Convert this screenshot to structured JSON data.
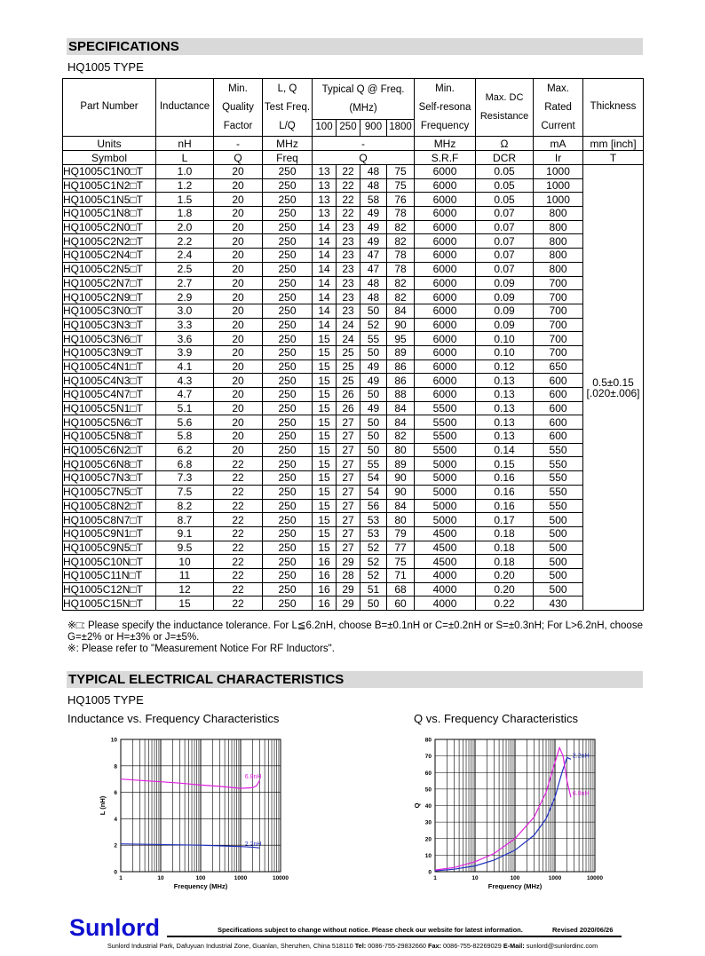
{
  "header": {
    "title": "SPECIFICATIONS",
    "subtitle": "HQ1005 TYPE"
  },
  "table": {
    "head": {
      "part_number": "Part Number",
      "inductance": "Inductance",
      "min_q": [
        "Min.",
        "Quality",
        "Factor"
      ],
      "test_freq": [
        "L, Q",
        "Test Freq.",
        "L/Q"
      ],
      "typical_q": [
        "Typical Q @ Freq.",
        "(MHz)"
      ],
      "q_freqs": [
        "100",
        "250",
        "900",
        "1800"
      ],
      "srf": [
        "Min.",
        "Self-resona",
        "Frequency"
      ],
      "dcr": [
        "Max. DC",
        "Resistance"
      ],
      "current": [
        "Max.",
        "Rated",
        "Current"
      ],
      "thickness": "Thickness"
    },
    "units": [
      "Units",
      "nH",
      "-",
      "MHz",
      "-",
      "MHz",
      "Ω",
      "mA",
      "mm [inch]"
    ],
    "symbols": [
      "Symbol",
      "L",
      "Q",
      "Freq",
      "Q",
      "S.R.F",
      "DCR",
      "Ir",
      "T"
    ],
    "rows": [
      [
        "HQ1005C1N0□T",
        "1.0",
        "20",
        "250",
        "13",
        "22",
        "48",
        "75",
        "6000",
        "0.05",
        "1000"
      ],
      [
        "HQ1005C1N2□T",
        "1.2",
        "20",
        "250",
        "13",
        "22",
        "48",
        "75",
        "6000",
        "0.05",
        "1000"
      ],
      [
        "HQ1005C1N5□T",
        "1.5",
        "20",
        "250",
        "13",
        "22",
        "58",
        "76",
        "6000",
        "0.05",
        "1000"
      ],
      [
        "HQ1005C1N8□T",
        "1.8",
        "20",
        "250",
        "13",
        "22",
        "49",
        "78",
        "6000",
        "0.07",
        "800"
      ],
      [
        "HQ1005C2N0□T",
        "2.0",
        "20",
        "250",
        "14",
        "23",
        "49",
        "82",
        "6000",
        "0.07",
        "800"
      ],
      [
        "HQ1005C2N2□T",
        "2.2",
        "20",
        "250",
        "14",
        "23",
        "49",
        "82",
        "6000",
        "0.07",
        "800"
      ],
      [
        "HQ1005C2N4□T",
        "2.4",
        "20",
        "250",
        "14",
        "23",
        "47",
        "78",
        "6000",
        "0.07",
        "800"
      ],
      [
        "HQ1005C2N5□T",
        "2.5",
        "20",
        "250",
        "14",
        "23",
        "47",
        "78",
        "6000",
        "0.07",
        "800"
      ],
      [
        "HQ1005C2N7□T",
        "2.7",
        "20",
        "250",
        "14",
        "23",
        "48",
        "82",
        "6000",
        "0.09",
        "700"
      ],
      [
        "HQ1005C2N9□T",
        "2.9",
        "20",
        "250",
        "14",
        "23",
        "48",
        "82",
        "6000",
        "0.09",
        "700"
      ],
      [
        "HQ1005C3N0□T",
        "3.0",
        "20",
        "250",
        "14",
        "23",
        "50",
        "84",
        "6000",
        "0.09",
        "700"
      ],
      [
        "HQ1005C3N3□T",
        "3.3",
        "20",
        "250",
        "14",
        "24",
        "52",
        "90",
        "6000",
        "0.09",
        "700"
      ],
      [
        "HQ1005C3N6□T",
        "3.6",
        "20",
        "250",
        "15",
        "24",
        "55",
        "95",
        "6000",
        "0.10",
        "700"
      ],
      [
        "HQ1005C3N9□T",
        "3.9",
        "20",
        "250",
        "15",
        "25",
        "50",
        "89",
        "6000",
        "0.10",
        "700"
      ],
      [
        "HQ1005C4N1□T",
        "4.1",
        "20",
        "250",
        "15",
        "25",
        "49",
        "86",
        "6000",
        "0.12",
        "650"
      ],
      [
        "HQ1005C4N3□T",
        "4.3",
        "20",
        "250",
        "15",
        "25",
        "49",
        "86",
        "6000",
        "0.13",
        "600"
      ],
      [
        "HQ1005C4N7□T",
        "4.7",
        "20",
        "250",
        "15",
        "26",
        "50",
        "88",
        "6000",
        "0.13",
        "600"
      ],
      [
        "HQ1005C5N1□T",
        "5.1",
        "20",
        "250",
        "15",
        "26",
        "49",
        "84",
        "5500",
        "0.13",
        "600"
      ],
      [
        "HQ1005C5N6□T",
        "5.6",
        "20",
        "250",
        "15",
        "27",
        "50",
        "84",
        "5500",
        "0.13",
        "600"
      ],
      [
        "HQ1005C5N8□T",
        "5.8",
        "20",
        "250",
        "15",
        "27",
        "50",
        "82",
        "5500",
        "0.13",
        "600"
      ],
      [
        "HQ1005C6N2□T",
        "6.2",
        "20",
        "250",
        "15",
        "27",
        "50",
        "80",
        "5500",
        "0.14",
        "550"
      ],
      [
        "HQ1005C6N8□T",
        "6.8",
        "22",
        "250",
        "15",
        "27",
        "55",
        "89",
        "5000",
        "0.15",
        "550"
      ],
      [
        "HQ1005C7N3□T",
        "7.3",
        "22",
        "250",
        "15",
        "27",
        "54",
        "90",
        "5000",
        "0.16",
        "550"
      ],
      [
        "HQ1005C7N5□T",
        "7.5",
        "22",
        "250",
        "15",
        "27",
        "54",
        "90",
        "5000",
        "0.16",
        "550"
      ],
      [
        "HQ1005C8N2□T",
        "8.2",
        "22",
        "250",
        "15",
        "27",
        "56",
        "84",
        "5000",
        "0.16",
        "550"
      ],
      [
        "HQ1005C8N7□T",
        "8.7",
        "22",
        "250",
        "15",
        "27",
        "53",
        "80",
        "5000",
        "0.17",
        "500"
      ],
      [
        "HQ1005C9N1□T",
        "9.1",
        "22",
        "250",
        "15",
        "27",
        "53",
        "79",
        "4500",
        "0.18",
        "500"
      ],
      [
        "HQ1005C9N5□T",
        "9.5",
        "22",
        "250",
        "15",
        "27",
        "52",
        "77",
        "4500",
        "0.18",
        "500"
      ],
      [
        "HQ1005C10N□T",
        "10",
        "22",
        "250",
        "16",
        "29",
        "52",
        "75",
        "4500",
        "0.18",
        "500"
      ],
      [
        "HQ1005C11N□T",
        "11",
        "22",
        "250",
        "16",
        "28",
        "52",
        "71",
        "4000",
        "0.20",
        "500"
      ],
      [
        "HQ1005C12N□T",
        "12",
        "22",
        "250",
        "16",
        "29",
        "51",
        "68",
        "4000",
        "0.20",
        "500"
      ],
      [
        "HQ1005C15N□T",
        "15",
        "22",
        "250",
        "16",
        "29",
        "50",
        "60",
        "4000",
        "0.22",
        "430"
      ]
    ],
    "thickness": [
      "0.5±0.15",
      "[.020±.006]"
    ]
  },
  "notes": [
    "※□: Please specify the inductance tolerance. For L≦6.2nH, choose B=±0.1nH or C=±0.2nH or S=±0.3nH; For L>6.2nH, choose G=±2% or H=±3% or J=±5%.",
    "※: Please refer to \"Measurement Notice For RF Inductors\"."
  ],
  "section2": {
    "title": "TYPICAL ELECTRICAL CHARACTERISTICS",
    "subtitle": "HQ1005 TYPE"
  },
  "charts": [
    {
      "type": "line",
      "title": "Inductance vs. Frequency Characteristics",
      "x_label": "Frequency (MHz)",
      "y_label": "L (nH)",
      "log_x": true,
      "grid": true,
      "xlim": [
        1,
        10000
      ],
      "xticks": [
        1,
        10,
        100,
        1000,
        10000
      ],
      "ylim": [
        0,
        10
      ],
      "yticks": [
        0,
        2,
        4,
        6,
        8,
        10
      ],
      "series": [
        {
          "name": "6.8nH",
          "color": "#e020e0",
          "x": [
            1,
            3,
            10,
            30,
            100,
            300,
            1000,
            2000,
            2500,
            3000
          ],
          "values": [
            7.0,
            6.9,
            6.8,
            6.7,
            6.55,
            6.45,
            6.3,
            6.35,
            6.5,
            6.9
          ]
        },
        {
          "name": "2.2nH",
          "color": "#2030c0",
          "x": [
            1,
            10,
            100,
            1000,
            2000,
            3000
          ],
          "values": [
            2.1,
            2.05,
            2.0,
            1.9,
            1.85,
            1.8
          ]
        }
      ]
    },
    {
      "type": "line",
      "title": "Q vs. Frequency Characteristics",
      "x_label": "Frequency (MHz)",
      "y_label": "Q",
      "log_x": true,
      "grid": true,
      "xlim": [
        1,
        10000
      ],
      "xticks": [
        1,
        10,
        100,
        1000,
        10000
      ],
      "ylim": [
        0,
        80
      ],
      "yticks": [
        0,
        10,
        20,
        30,
        40,
        50,
        60,
        70,
        80
      ],
      "series": [
        {
          "name": "2.2nH",
          "color": "#2030c0",
          "x": [
            1,
            3,
            10,
            30,
            100,
            300,
            600,
            1000,
            1500,
            2000,
            2500
          ],
          "values": [
            0.5,
            1.5,
            3.5,
            7,
            13,
            22,
            32,
            45,
            60,
            69,
            68
          ]
        },
        {
          "name": "6.8nH",
          "color": "#e020e0",
          "x": [
            1,
            3,
            10,
            30,
            100,
            300,
            600,
            1000,
            1300,
            1600,
            2000,
            2500
          ],
          "values": [
            1,
            2.5,
            6,
            11,
            20,
            33,
            48,
            66,
            75,
            70,
            55,
            45
          ]
        }
      ]
    }
  ],
  "footer": {
    "brand": "Sunlord",
    "disclaimer": "Specifications subject to change without notice. Please check our website for latest information.",
    "revised": "Revised 2020/06/26",
    "address": [
      "Sunlord Industrial Park, Dafuyuan Industrial Zone, Guanlan, Shenzhen, China 518110",
      "Tel:",
      "0086-755-29832660",
      "Fax:",
      "0086-755-82269029",
      "E-Mail:",
      "sunlord@sunlordinc.com"
    ]
  }
}
